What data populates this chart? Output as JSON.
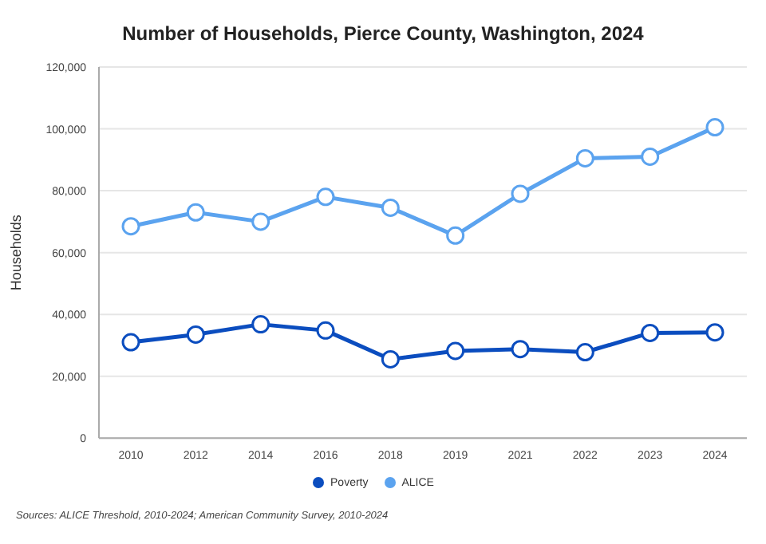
{
  "chart_data": {
    "type": "line",
    "title": "Number of Households, Pierce County, Washington, 2024",
    "ylabel": "Households",
    "categories": [
      "2010",
      "2012",
      "2014",
      "2016",
      "2018",
      "2019",
      "2021",
      "2022",
      "2023",
      "2024"
    ],
    "series": [
      {
        "name": "Poverty",
        "color": "#0b4dbf",
        "values": [
          31000,
          33500,
          36800,
          34800,
          25500,
          28200,
          28800,
          27800,
          34000,
          34200
        ]
      },
      {
        "name": "ALICE",
        "color": "#5ba3ef",
        "values": [
          68500,
          73000,
          70000,
          78000,
          74500,
          65500,
          79000,
          90500,
          91000,
          100500
        ]
      }
    ],
    "ylim": [
      0,
      120000
    ],
    "yticks": [
      0,
      {
        "value": 20000,
        "label": "20,000"
      },
      {
        "value": 40000,
        "label": "40,000"
      },
      {
        "value": 60000,
        "label": "60,000"
      },
      {
        "value": 80000,
        "label": "80,000"
      },
      {
        "value": 100000,
        "label": "100,000"
      },
      {
        "value": 120000,
        "label": "120,000"
      }
    ],
    "grid": "y",
    "legend": "bottom",
    "marker": "circle",
    "line_style": "solid",
    "annotations": [
      "Sources: ALICE Threshold, 2010-2024; American Community Survey, 2010-2024"
    ]
  }
}
